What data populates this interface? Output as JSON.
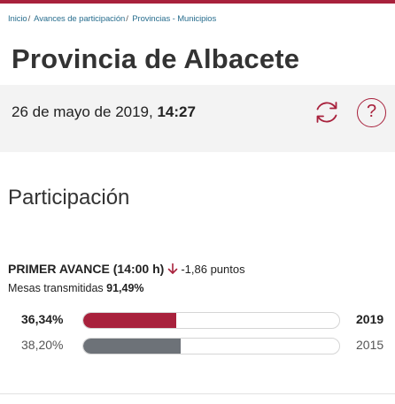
{
  "breadcrumb": [
    {
      "label": "Inicio"
    },
    {
      "label": "Avances de participación"
    },
    {
      "label": "Provincias - Municipios"
    }
  ],
  "breadcrumb_separator": "/",
  "page_title": "Provincia de Albacete",
  "date_bar": {
    "date": "26 de mayo de 2019, ",
    "time": "14:27",
    "refresh_icon": "refresh-icon",
    "help_label": "?"
  },
  "section_title": "Participación",
  "avance": {
    "label": "PRIMER AVANCE",
    "hour": "(14:00 h)",
    "trend_icon": "arrow-down-icon",
    "diff": "-1,86 puntos",
    "mesas_label": "Mesas transmitidas ",
    "mesas_value": "91,49%"
  },
  "bars": [
    {
      "year": "2019",
      "pct_label": "36,34%",
      "value": 36.34,
      "color": "#a8213c"
    },
    {
      "year": "2015",
      "pct_label": "38,20%",
      "value": 38.2,
      "color": "#6d7278"
    }
  ],
  "colors": {
    "accent": "#a8213c",
    "link": "#2a6f8f",
    "bar_old": "#6d7278"
  }
}
